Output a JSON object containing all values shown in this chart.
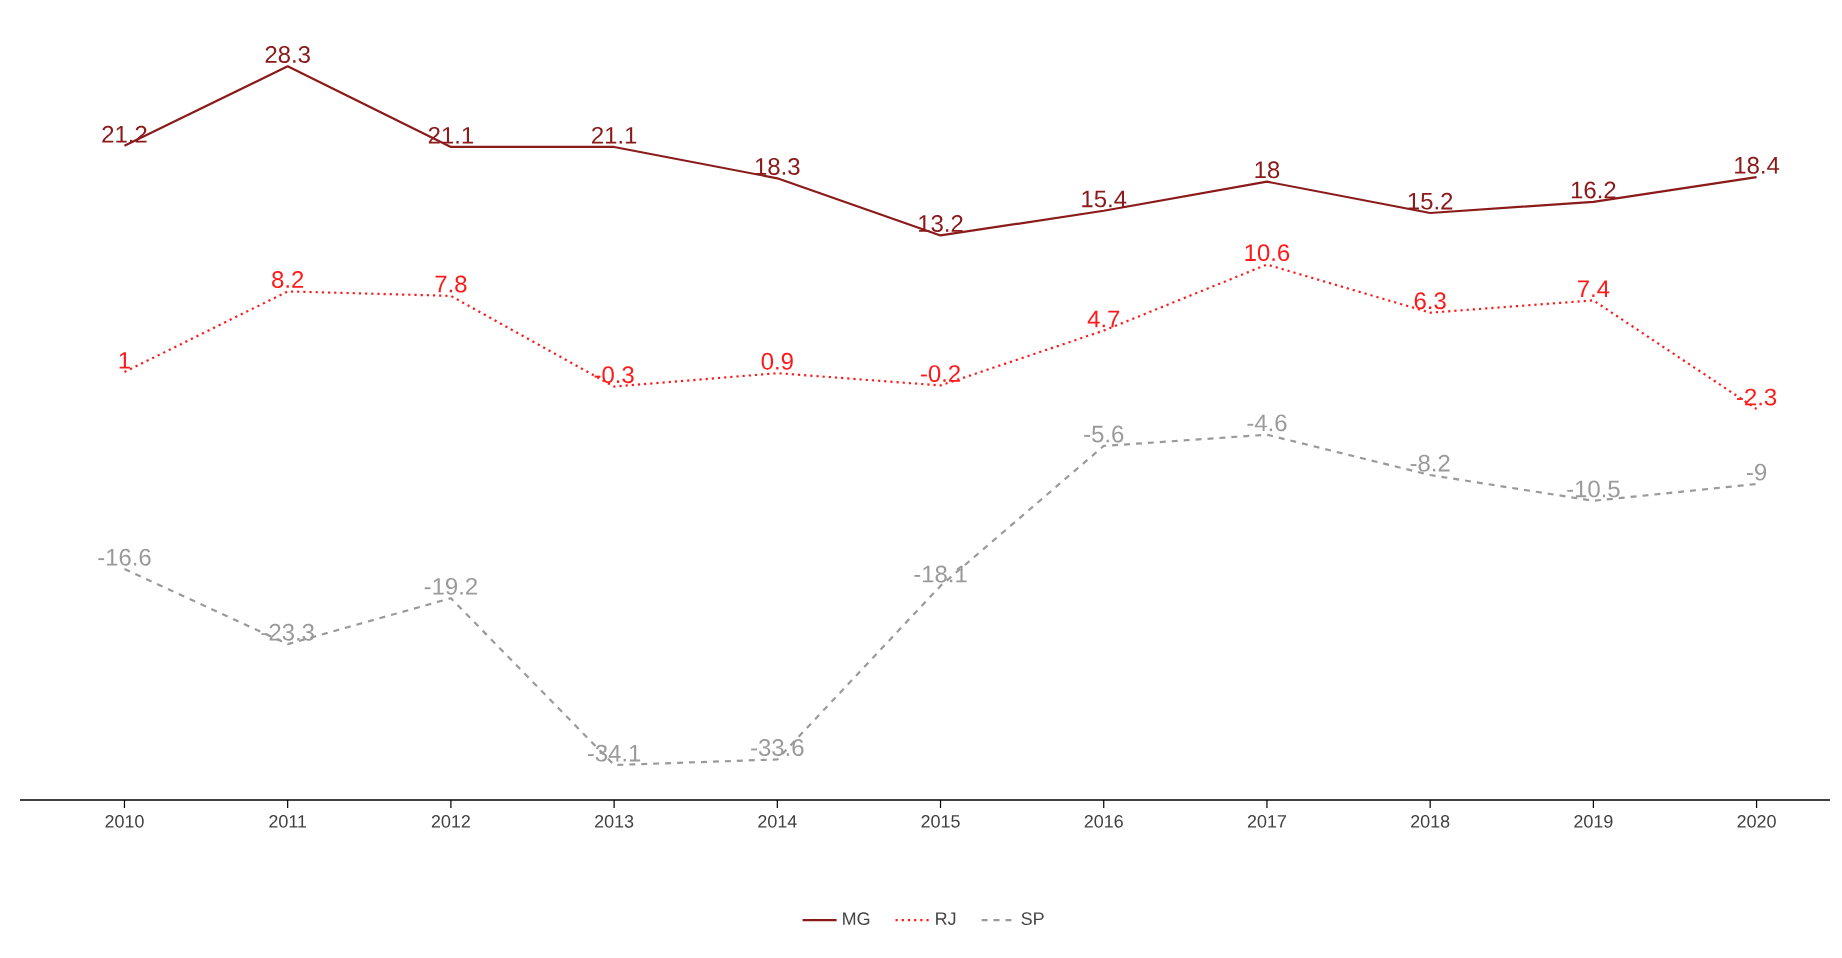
{
  "chart_data": {
    "type": "line",
    "categories": [
      "2010",
      "2011",
      "2012",
      "2013",
      "2014",
      "2015",
      "2016",
      "2017",
      "2018",
      "2019",
      "2020"
    ],
    "series": [
      {
        "name": "MG",
        "color": "#8b1a1a",
        "line_style": "solid",
        "values": [
          21.2,
          28.3,
          21.1,
          21.1,
          18.3,
          13.2,
          15.4,
          18,
          15.2,
          16.2,
          18.4
        ]
      },
      {
        "name": "RJ",
        "color": "#ff1a1a",
        "line_style": "dotted",
        "values": [
          1,
          8.2,
          7.8,
          -0.3,
          0.9,
          -0.2,
          4.7,
          10.6,
          6.3,
          7.4,
          -2.3
        ]
      },
      {
        "name": "SP",
        "color": "#9a9a9a",
        "line_style": "dashed",
        "values": [
          -16.6,
          -23.3,
          -19.2,
          -34.1,
          -33.6,
          -18.1,
          -5.6,
          -4.6,
          -8.2,
          -10.5,
          -9
        ]
      }
    ],
    "data_labels": true,
    "legend": "bottom",
    "marker": "none"
  }
}
